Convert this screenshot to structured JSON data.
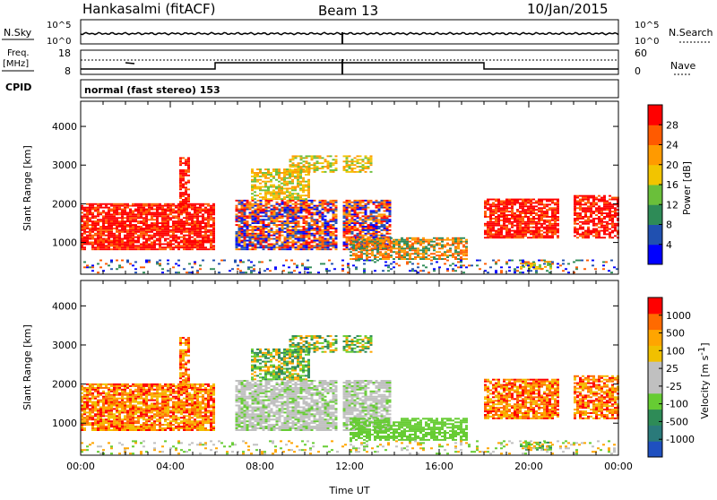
{
  "header": {
    "station": "Hankasalmi (fitACF)",
    "beam": "Beam 13",
    "date": "10/Jan/2015"
  },
  "noise_panel": {
    "left_label": "N.Sky",
    "right_label": "N.Search",
    "ticks": [
      "10^5",
      "10^0"
    ]
  },
  "freq_panel": {
    "label_line1": "Freq.",
    "label_line2": "[MHz]",
    "left_ticks": [
      "18",
      "8"
    ],
    "right_ticks": [
      "60",
      "0"
    ],
    "right_label": "Nave"
  },
  "cpid_panel": {
    "label": "CPID",
    "mode_text": "normal (fast stereo) 153"
  },
  "colors": {
    "power": [
      "#0000ff",
      "#2050b0",
      "#2e8b57",
      "#6abf3a",
      "#f2c400",
      "#ff9a00",
      "#ff5a00",
      "#ff0000"
    ],
    "velocity": [
      "#ff0000",
      "#ff6a00",
      "#ffa500",
      "#f0c000",
      "#c0c0c0",
      "#c0c0c0",
      "#66cc33",
      "#2e8b57",
      "#2a7a7a",
      "#1f50c0"
    ]
  },
  "chart_data": [
    {
      "type": "heatmap",
      "quantity": "Power",
      "xlabel": "",
      "ylabel": "Slant Range [km]",
      "y_ticks": [
        "1000",
        "2000",
        "3000",
        "4000"
      ],
      "ylim_km": [
        180,
        4650
      ],
      "xlim_hours": [
        0,
        24
      ],
      "colorbar_label": "Power [dB]",
      "colorbar_ticks": [
        "4",
        "8",
        "12",
        "16",
        "20",
        "24",
        "28"
      ],
      "colorbar_range_db": [
        0,
        32
      ]
    },
    {
      "type": "heatmap",
      "quantity": "Velocity",
      "xlabel": "Time UT",
      "ylabel": "Slant Range [km]",
      "y_ticks": [
        "1000",
        "2000",
        "3000",
        "4000"
      ],
      "ylim_km": [
        180,
        4650
      ],
      "xlim_hours": [
        0,
        24
      ],
      "x_ticks": [
        "00:00",
        "04:00",
        "08:00",
        "12:00",
        "16:00",
        "20:00",
        "00:00"
      ],
      "colorbar_label": "Velocity [m s",
      "colorbar_label_exponent": "-1",
      "colorbar_label_end": "]",
      "colorbar_ticks": [
        "1000",
        "500",
        "100",
        "25",
        "-25",
        "-100",
        "-500",
        "-1000"
      ]
    }
  ]
}
